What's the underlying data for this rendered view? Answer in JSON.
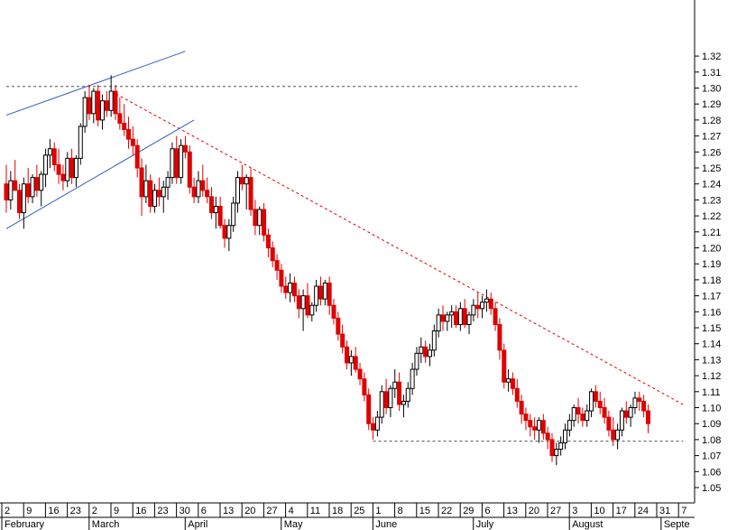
{
  "chart_data": {
    "type": "candlestick",
    "ylim": [
      1.04,
      1.33
    ],
    "y_ticks": [
      1.05,
      1.06,
      1.07,
      1.08,
      1.09,
      1.1,
      1.11,
      1.12,
      1.13,
      1.14,
      1.15,
      1.16,
      1.17,
      1.18,
      1.19,
      1.2,
      1.21,
      1.22,
      1.23,
      1.24,
      1.25,
      1.26,
      1.27,
      1.28,
      1.29,
      1.3,
      1.31,
      1.32
    ],
    "day_ticks": [
      {
        "label": "2",
        "index": 0
      },
      {
        "label": "9",
        "index": 5
      },
      {
        "label": "16",
        "index": 10
      },
      {
        "label": "23",
        "index": 15
      },
      {
        "label": "2",
        "index": 20
      },
      {
        "label": "9",
        "index": 25
      },
      {
        "label": "16",
        "index": 30
      },
      {
        "label": "23",
        "index": 35
      },
      {
        "label": "30",
        "index": 40
      },
      {
        "label": "6",
        "index": 45
      },
      {
        "label": "13",
        "index": 50
      },
      {
        "label": "20",
        "index": 55
      },
      {
        "label": "27",
        "index": 60
      },
      {
        "label": "4",
        "index": 65
      },
      {
        "label": "11",
        "index": 70
      },
      {
        "label": "18",
        "index": 75
      },
      {
        "label": "25",
        "index": 80
      },
      {
        "label": "1",
        "index": 85
      },
      {
        "label": "8",
        "index": 90
      },
      {
        "label": "15",
        "index": 95
      },
      {
        "label": "22",
        "index": 100
      },
      {
        "label": "29",
        "index": 105
      },
      {
        "label": "6",
        "index": 110
      },
      {
        "label": "13",
        "index": 115
      },
      {
        "label": "20",
        "index": 120
      },
      {
        "label": "27",
        "index": 125
      },
      {
        "label": "3",
        "index": 130
      },
      {
        "label": "10",
        "index": 135
      },
      {
        "label": "17",
        "index": 140
      },
      {
        "label": "24",
        "index": 145
      },
      {
        "label": "31",
        "index": 150
      },
      {
        "label": "7",
        "index": 155
      }
    ],
    "months": [
      {
        "label": "February",
        "index": 0
      },
      {
        "label": "March",
        "index": 20
      },
      {
        "label": "April",
        "index": 42
      },
      {
        "label": "May",
        "index": 64
      },
      {
        "label": "June",
        "index": 85
      },
      {
        "label": "July",
        "index": 108
      },
      {
        "label": "August",
        "index": 130
      },
      {
        "label": "Septe",
        "index": 151
      }
    ],
    "candles": [
      [
        1.24,
        1.252,
        1.222,
        1.23
      ],
      [
        1.23,
        1.248,
        1.224,
        1.242
      ],
      [
        1.242,
        1.255,
        1.236,
        1.236
      ],
      [
        1.236,
        1.24,
        1.218,
        1.222
      ],
      [
        1.222,
        1.244,
        1.212,
        1.24
      ],
      [
        1.24,
        1.25,
        1.228,
        1.232
      ],
      [
        1.232,
        1.246,
        1.228,
        1.244
      ],
      [
        1.244,
        1.252,
        1.232,
        1.236
      ],
      [
        1.236,
        1.248,
        1.226,
        1.246
      ],
      [
        1.246,
        1.262,
        1.238,
        1.258
      ],
      [
        1.258,
        1.268,
        1.25,
        1.262
      ],
      [
        1.262,
        1.266,
        1.248,
        1.252
      ],
      [
        1.252,
        1.262,
        1.24,
        1.246
      ],
      [
        1.246,
        1.252,
        1.236,
        1.242
      ],
      [
        1.242,
        1.26,
        1.238,
        1.256
      ],
      [
        1.256,
        1.262,
        1.24,
        1.244
      ],
      [
        1.244,
        1.258,
        1.238,
        1.256
      ],
      [
        1.256,
        1.278,
        1.252,
        1.276
      ],
      [
        1.276,
        1.298,
        1.272,
        1.294
      ],
      [
        1.294,
        1.302,
        1.28,
        1.284
      ],
      [
        1.284,
        1.3,
        1.278,
        1.298
      ],
      [
        1.298,
        1.302,
        1.276,
        1.28
      ],
      [
        1.28,
        1.296,
        1.274,
        1.292
      ],
      [
        1.292,
        1.298,
        1.282,
        1.286
      ],
      [
        1.286,
        1.308,
        1.282,
        1.298
      ],
      [
        1.298,
        1.302,
        1.28,
        1.284
      ],
      [
        1.284,
        1.294,
        1.274,
        1.278
      ],
      [
        1.278,
        1.29,
        1.27,
        1.274
      ],
      [
        1.274,
        1.282,
        1.262,
        1.268
      ],
      [
        1.268,
        1.276,
        1.258,
        1.264
      ],
      [
        1.264,
        1.268,
        1.244,
        1.25
      ],
      [
        1.25,
        1.256,
        1.22,
        1.232
      ],
      [
        1.232,
        1.252,
        1.228,
        1.242
      ],
      [
        1.242,
        1.246,
        1.222,
        1.226
      ],
      [
        1.226,
        1.24,
        1.222,
        1.236
      ],
      [
        1.236,
        1.244,
        1.226,
        1.232
      ],
      [
        1.232,
        1.242,
        1.222,
        1.238
      ],
      [
        1.238,
        1.248,
        1.23,
        1.244
      ],
      [
        1.244,
        1.266,
        1.24,
        1.262
      ],
      [
        1.262,
        1.27,
        1.24,
        1.244
      ],
      [
        1.244,
        1.268,
        1.24,
        1.264
      ],
      [
        1.264,
        1.27,
        1.256,
        1.26
      ],
      [
        1.26,
        1.264,
        1.234,
        1.238
      ],
      [
        1.238,
        1.244,
        1.228,
        1.232
      ],
      [
        1.232,
        1.248,
        1.228,
        1.242
      ],
      [
        1.242,
        1.252,
        1.232,
        1.236
      ],
      [
        1.236,
        1.244,
        1.228,
        1.232
      ],
      [
        1.232,
        1.238,
        1.218,
        1.222
      ],
      [
        1.222,
        1.232,
        1.212,
        1.226
      ],
      [
        1.226,
        1.232,
        1.212,
        1.214
      ],
      [
        1.214,
        1.218,
        1.2,
        1.206
      ],
      [
        1.206,
        1.218,
        1.198,
        1.214
      ],
      [
        1.214,
        1.232,
        1.21,
        1.228
      ],
      [
        1.228,
        1.248,
        1.222,
        1.244
      ],
      [
        1.244,
        1.252,
        1.236,
        1.24
      ],
      [
        1.24,
        1.246,
        1.224,
        1.244
      ],
      [
        1.244,
        1.25,
        1.22,
        1.224
      ],
      [
        1.224,
        1.23,
        1.208,
        1.214
      ],
      [
        1.214,
        1.226,
        1.208,
        1.224
      ],
      [
        1.224,
        1.228,
        1.204,
        1.208
      ],
      [
        1.208,
        1.212,
        1.194,
        1.2
      ],
      [
        1.2,
        1.204,
        1.188,
        1.192
      ],
      [
        1.192,
        1.196,
        1.18,
        1.186
      ],
      [
        1.186,
        1.19,
        1.172,
        1.176
      ],
      [
        1.176,
        1.182,
        1.168,
        1.172
      ],
      [
        1.172,
        1.184,
        1.166,
        1.178
      ],
      [
        1.178,
        1.182,
        1.166,
        1.17
      ],
      [
        1.17,
        1.174,
        1.156,
        1.162
      ],
      [
        1.162,
        1.174,
        1.148,
        1.17
      ],
      [
        1.17,
        1.178,
        1.156,
        1.158
      ],
      [
        1.158,
        1.166,
        1.154,
        1.164
      ],
      [
        1.164,
        1.18,
        1.16,
        1.176
      ],
      [
        1.176,
        1.182,
        1.164,
        1.168
      ],
      [
        1.168,
        1.18,
        1.164,
        1.178
      ],
      [
        1.178,
        1.182,
        1.158,
        1.164
      ],
      [
        1.164,
        1.168,
        1.152,
        1.156
      ],
      [
        1.156,
        1.16,
        1.142,
        1.146
      ],
      [
        1.146,
        1.152,
        1.134,
        1.138
      ],
      [
        1.138,
        1.142,
        1.124,
        1.128
      ],
      [
        1.128,
        1.136,
        1.12,
        1.132
      ],
      [
        1.132,
        1.138,
        1.122,
        1.124
      ],
      [
        1.124,
        1.128,
        1.114,
        1.118
      ],
      [
        1.118,
        1.122,
        1.104,
        1.108
      ],
      [
        1.108,
        1.112,
        1.086,
        1.09
      ],
      [
        1.09,
        1.094,
        1.08,
        1.086
      ],
      [
        1.086,
        1.098,
        1.082,
        1.094
      ],
      [
        1.094,
        1.114,
        1.09,
        1.11
      ],
      [
        1.11,
        1.118,
        1.096,
        1.1
      ],
      [
        1.1,
        1.114,
        1.094,
        1.112
      ],
      [
        1.112,
        1.124,
        1.106,
        1.116
      ],
      [
        1.116,
        1.122,
        1.098,
        1.102
      ],
      [
        1.102,
        1.108,
        1.094,
        1.104
      ],
      [
        1.104,
        1.116,
        1.1,
        1.112
      ],
      [
        1.112,
        1.128,
        1.108,
        1.124
      ],
      [
        1.124,
        1.138,
        1.12,
        1.134
      ],
      [
        1.134,
        1.144,
        1.128,
        1.138
      ],
      [
        1.138,
        1.142,
        1.128,
        1.132
      ],
      [
        1.132,
        1.14,
        1.126,
        1.136
      ],
      [
        1.136,
        1.152,
        1.132,
        1.148
      ],
      [
        1.148,
        1.162,
        1.144,
        1.158
      ],
      [
        1.158,
        1.164,
        1.148,
        1.154
      ],
      [
        1.154,
        1.16,
        1.148,
        1.158
      ],
      [
        1.158,
        1.164,
        1.15,
        1.16
      ],
      [
        1.16,
        1.164,
        1.15,
        1.152
      ],
      [
        1.152,
        1.166,
        1.148,
        1.162
      ],
      [
        1.162,
        1.168,
        1.15,
        1.152
      ],
      [
        1.152,
        1.16,
        1.146,
        1.158
      ],
      [
        1.158,
        1.168,
        1.154,
        1.164
      ],
      [
        1.164,
        1.172,
        1.156,
        1.162
      ],
      [
        1.162,
        1.17,
        1.156,
        1.166
      ],
      [
        1.166,
        1.174,
        1.16,
        1.168
      ],
      [
        1.168,
        1.172,
        1.158,
        1.162
      ],
      [
        1.162,
        1.166,
        1.148,
        1.152
      ],
      [
        1.152,
        1.156,
        1.13,
        1.136
      ],
      [
        1.136,
        1.14,
        1.112,
        1.116
      ],
      [
        1.116,
        1.124,
        1.11,
        1.118
      ],
      [
        1.118,
        1.122,
        1.108,
        1.112
      ],
      [
        1.112,
        1.118,
        1.1,
        1.104
      ],
      [
        1.104,
        1.108,
        1.09,
        1.096
      ],
      [
        1.096,
        1.1,
        1.086,
        1.092
      ],
      [
        1.092,
        1.096,
        1.082,
        1.088
      ],
      [
        1.088,
        1.094,
        1.08,
        1.086
      ],
      [
        1.086,
        1.094,
        1.078,
        1.092
      ],
      [
        1.092,
        1.096,
        1.08,
        1.084
      ],
      [
        1.084,
        1.088,
        1.074,
        1.08
      ],
      [
        1.08,
        1.084,
        1.066,
        1.07
      ],
      [
        1.07,
        1.078,
        1.064,
        1.074
      ],
      [
        1.074,
        1.082,
        1.07,
        1.078
      ],
      [
        1.078,
        1.09,
        1.074,
        1.086
      ],
      [
        1.086,
        1.096,
        1.082,
        1.092
      ],
      [
        1.092,
        1.102,
        1.088,
        1.1
      ],
      [
        1.1,
        1.106,
        1.09,
        1.096
      ],
      [
        1.096,
        1.1,
        1.088,
        1.092
      ],
      [
        1.092,
        1.102,
        1.088,
        1.098
      ],
      [
        1.098,
        1.112,
        1.094,
        1.11
      ],
      [
        1.11,
        1.114,
        1.1,
        1.104
      ],
      [
        1.104,
        1.11,
        1.096,
        1.1
      ],
      [
        1.1,
        1.106,
        1.09,
        1.094
      ],
      [
        1.094,
        1.098,
        1.082,
        1.086
      ],
      [
        1.086,
        1.094,
        1.076,
        1.08
      ],
      [
        1.08,
        1.09,
        1.074,
        1.086
      ],
      [
        1.086,
        1.1,
        1.082,
        1.098
      ],
      [
        1.098,
        1.104,
        1.09,
        1.094
      ],
      [
        1.094,
        1.102,
        1.088,
        1.1
      ],
      [
        1.1,
        1.11,
        1.096,
        1.106
      ],
      [
        1.106,
        1.11,
        1.098,
        1.104
      ],
      [
        1.104,
        1.108,
        1.094,
        1.098
      ],
      [
        1.098,
        1.102,
        1.084,
        1.09
      ]
    ],
    "trendlines": [
      {
        "kind": "resistance",
        "color": "#e00000",
        "dashed": true,
        "from": [
          24,
          1.298
        ],
        "to": [
          155,
          1.102
        ]
      },
      {
        "kind": "support",
        "color": "#505050",
        "dashed": true,
        "from": [
          84,
          1.079
        ],
        "to": [
          155,
          1.079
        ]
      },
      {
        "kind": "resistance",
        "color": "#505050",
        "dashed": true,
        "from": [
          0,
          1.301
        ],
        "to": [
          131,
          1.301
        ]
      },
      {
        "kind": "channel-upper",
        "color": "#3060c0",
        "dashed": false,
        "from": [
          0,
          1.283
        ],
        "to": [
          41,
          1.323
        ]
      },
      {
        "kind": "channel-lower",
        "color": "#3060c0",
        "dashed": false,
        "from": [
          0,
          1.212
        ],
        "to": [
          43,
          1.28
        ]
      }
    ]
  }
}
